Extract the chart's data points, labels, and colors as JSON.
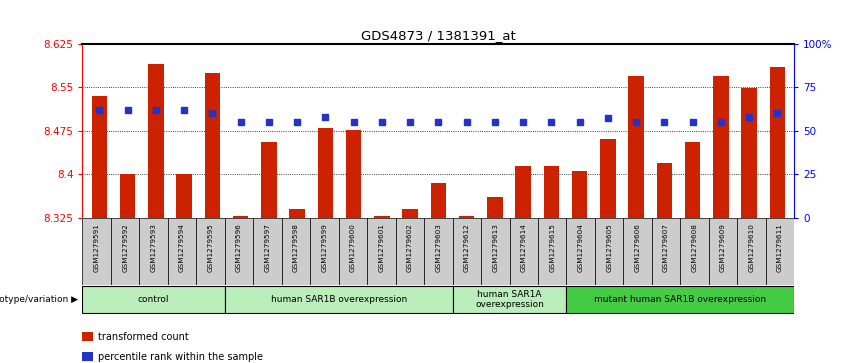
{
  "title": "GDS4873 / 1381391_at",
  "samples": [
    "GSM1279591",
    "GSM1279592",
    "GSM1279593",
    "GSM1279594",
    "GSM1279595",
    "GSM1279596",
    "GSM1279597",
    "GSM1279598",
    "GSM1279599",
    "GSM1279600",
    "GSM1279601",
    "GSM1279602",
    "GSM1279603",
    "GSM1279612",
    "GSM1279613",
    "GSM1279614",
    "GSM1279615",
    "GSM1279604",
    "GSM1279605",
    "GSM1279606",
    "GSM1279607",
    "GSM1279608",
    "GSM1279609",
    "GSM1279610",
    "GSM1279611"
  ],
  "red_values": [
    8.535,
    8.4,
    8.59,
    8.4,
    8.575,
    8.328,
    8.455,
    8.34,
    8.48,
    8.477,
    8.328,
    8.34,
    8.385,
    8.328,
    8.36,
    8.415,
    8.415,
    8.405,
    8.46,
    8.57,
    8.42,
    8.455,
    8.57,
    8.548,
    8.585
  ],
  "blue_pcts": [
    62,
    62,
    62,
    62,
    60,
    55,
    55,
    55,
    58,
    55,
    55,
    55,
    55,
    55,
    55,
    55,
    55,
    55,
    57,
    55,
    55,
    55,
    55,
    58,
    60
  ],
  "ylim": [
    8.325,
    8.625
  ],
  "yticks": [
    8.325,
    8.4,
    8.475,
    8.55,
    8.625
  ],
  "right_yticks": [
    0,
    25,
    50,
    75,
    100
  ],
  "right_yticklabels": [
    "0",
    "25",
    "50",
    "75",
    "100%"
  ],
  "groups": [
    {
      "label": "control",
      "start": 0,
      "end": 5,
      "color": "#bbeebb"
    },
    {
      "label": "human SAR1B overexpression",
      "start": 5,
      "end": 13,
      "color": "#bbeebb"
    },
    {
      "label": "human SAR1A\noverexpression",
      "start": 13,
      "end": 17,
      "color": "#bbeebb"
    },
    {
      "label": "mutant human SAR1B overexpression",
      "start": 17,
      "end": 25,
      "color": "#44cc44"
    }
  ],
  "bar_color": "#cc2200",
  "dot_color": "#2233cc",
  "label_bg": "#cccccc",
  "legend_items": [
    {
      "color": "#cc2200",
      "label": "transformed count"
    },
    {
      "color": "#2233cc",
      "label": "percentile rank within the sample"
    }
  ]
}
